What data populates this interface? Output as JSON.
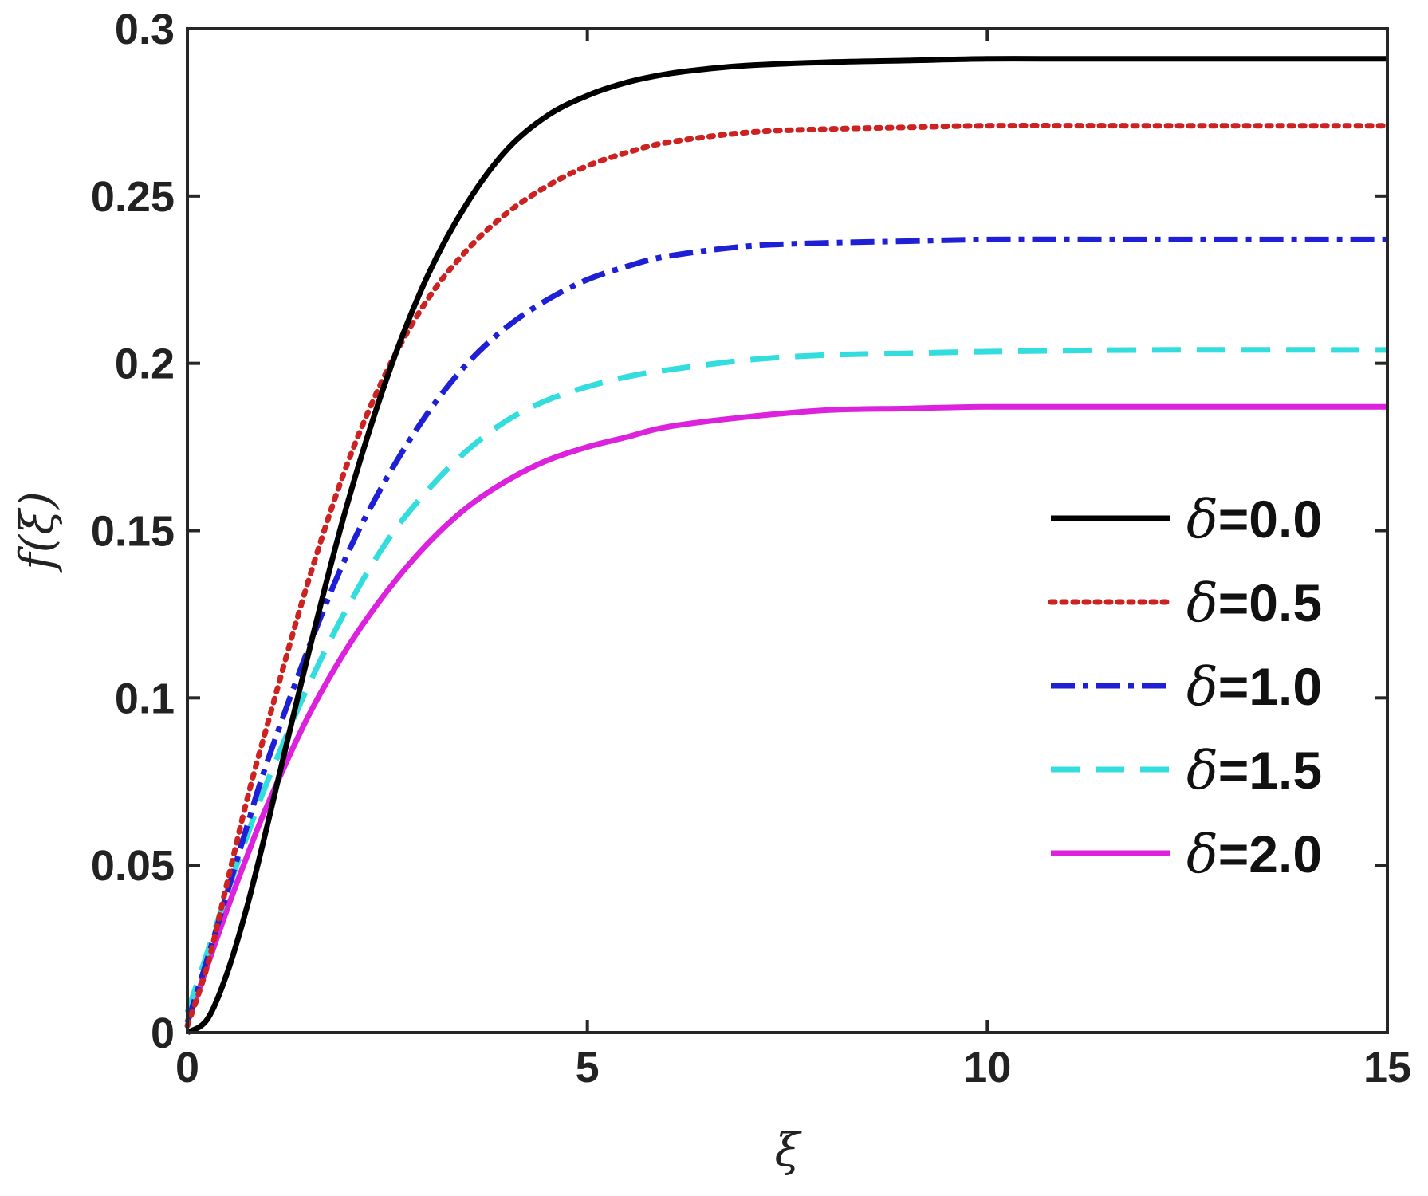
{
  "chart_data": {
    "type": "line",
    "title": "",
    "xlabel": "ξ",
    "ylabel": "f(ξ)",
    "xlim": [
      0,
      15
    ],
    "ylim": [
      0,
      0.3
    ],
    "x_ticks": [
      0,
      5,
      10,
      15
    ],
    "x_tick_labels": [
      "0",
      "5",
      "10",
      "15"
    ],
    "y_ticks": [
      0,
      0.05,
      0.1,
      0.15,
      0.2,
      0.25,
      0.3
    ],
    "y_tick_labels": [
      "0",
      "0.05",
      "0.1",
      "0.15",
      "0.2",
      "0.25",
      "0.3"
    ],
    "grid": false,
    "legend_position": "right",
    "legend_symbol": "δ",
    "series": [
      {
        "name": "=0.0",
        "color": "#000000",
        "style": "solid",
        "x": [
          0,
          0.25,
          0.5,
          0.75,
          1,
          1.5,
          2,
          2.5,
          3,
          3.5,
          4,
          4.5,
          5,
          5.5,
          6,
          6.5,
          7,
          8,
          9,
          10,
          11,
          12,
          13,
          14,
          15
        ],
        "y": [
          0,
          0.004,
          0.018,
          0.038,
          0.062,
          0.112,
          0.158,
          0.196,
          0.226,
          0.248,
          0.264,
          0.274,
          0.28,
          0.284,
          0.2865,
          0.288,
          0.289,
          0.29,
          0.2905,
          0.291,
          0.291,
          0.291,
          0.291,
          0.291,
          0.291
        ]
      },
      {
        "name": "=0.5",
        "color": "#cc2222",
        "style": "dotted",
        "x": [
          0,
          0.25,
          0.5,
          0.75,
          1,
          1.5,
          2,
          2.5,
          3,
          3.5,
          4,
          4.5,
          5,
          5.5,
          6,
          7,
          8,
          9,
          10,
          12,
          15
        ],
        "y": [
          0.002,
          0.02,
          0.045,
          0.07,
          0.092,
          0.134,
          0.17,
          0.198,
          0.219,
          0.234,
          0.245,
          0.253,
          0.259,
          0.263,
          0.266,
          0.269,
          0.27,
          0.2705,
          0.271,
          0.271,
          0.271
        ]
      },
      {
        "name": "=1.0",
        "color": "#1f1fd6",
        "style": "dashdot",
        "x": [
          0,
          0.25,
          0.5,
          0.75,
          1,
          1.5,
          2,
          2.5,
          3,
          3.5,
          4,
          4.5,
          5,
          5.5,
          6,
          7,
          8,
          9,
          10,
          12,
          15
        ],
        "y": [
          0.003,
          0.022,
          0.042,
          0.062,
          0.081,
          0.114,
          0.143,
          0.166,
          0.185,
          0.2,
          0.211,
          0.219,
          0.225,
          0.229,
          0.232,
          0.235,
          0.236,
          0.2365,
          0.237,
          0.237,
          0.237
        ]
      },
      {
        "name": "=1.5",
        "color": "#33dddd",
        "style": "dashed",
        "x": [
          0,
          0.25,
          0.5,
          0.75,
          1,
          1.5,
          2,
          2.5,
          3,
          3.5,
          4,
          4.5,
          5,
          5.5,
          6,
          7,
          8,
          9,
          10,
          12,
          15
        ],
        "y": [
          0.006,
          0.024,
          0.042,
          0.059,
          0.075,
          0.103,
          0.127,
          0.147,
          0.162,
          0.174,
          0.183,
          0.189,
          0.193,
          0.196,
          0.198,
          0.201,
          0.2025,
          0.203,
          0.2035,
          0.204,
          0.204
        ]
      },
      {
        "name": "=2.0",
        "color": "#dd22dd",
        "style": "solid",
        "x": [
          0,
          0.25,
          0.5,
          0.75,
          1,
          1.5,
          2,
          2.5,
          3,
          3.5,
          4,
          4.5,
          5,
          5.5,
          6,
          7,
          8,
          9,
          10,
          12,
          15
        ],
        "y": [
          0.003,
          0.02,
          0.037,
          0.053,
          0.068,
          0.094,
          0.115,
          0.132,
          0.146,
          0.157,
          0.165,
          0.171,
          0.175,
          0.178,
          0.181,
          0.184,
          0.186,
          0.1865,
          0.187,
          0.187,
          0.187
        ]
      }
    ]
  }
}
